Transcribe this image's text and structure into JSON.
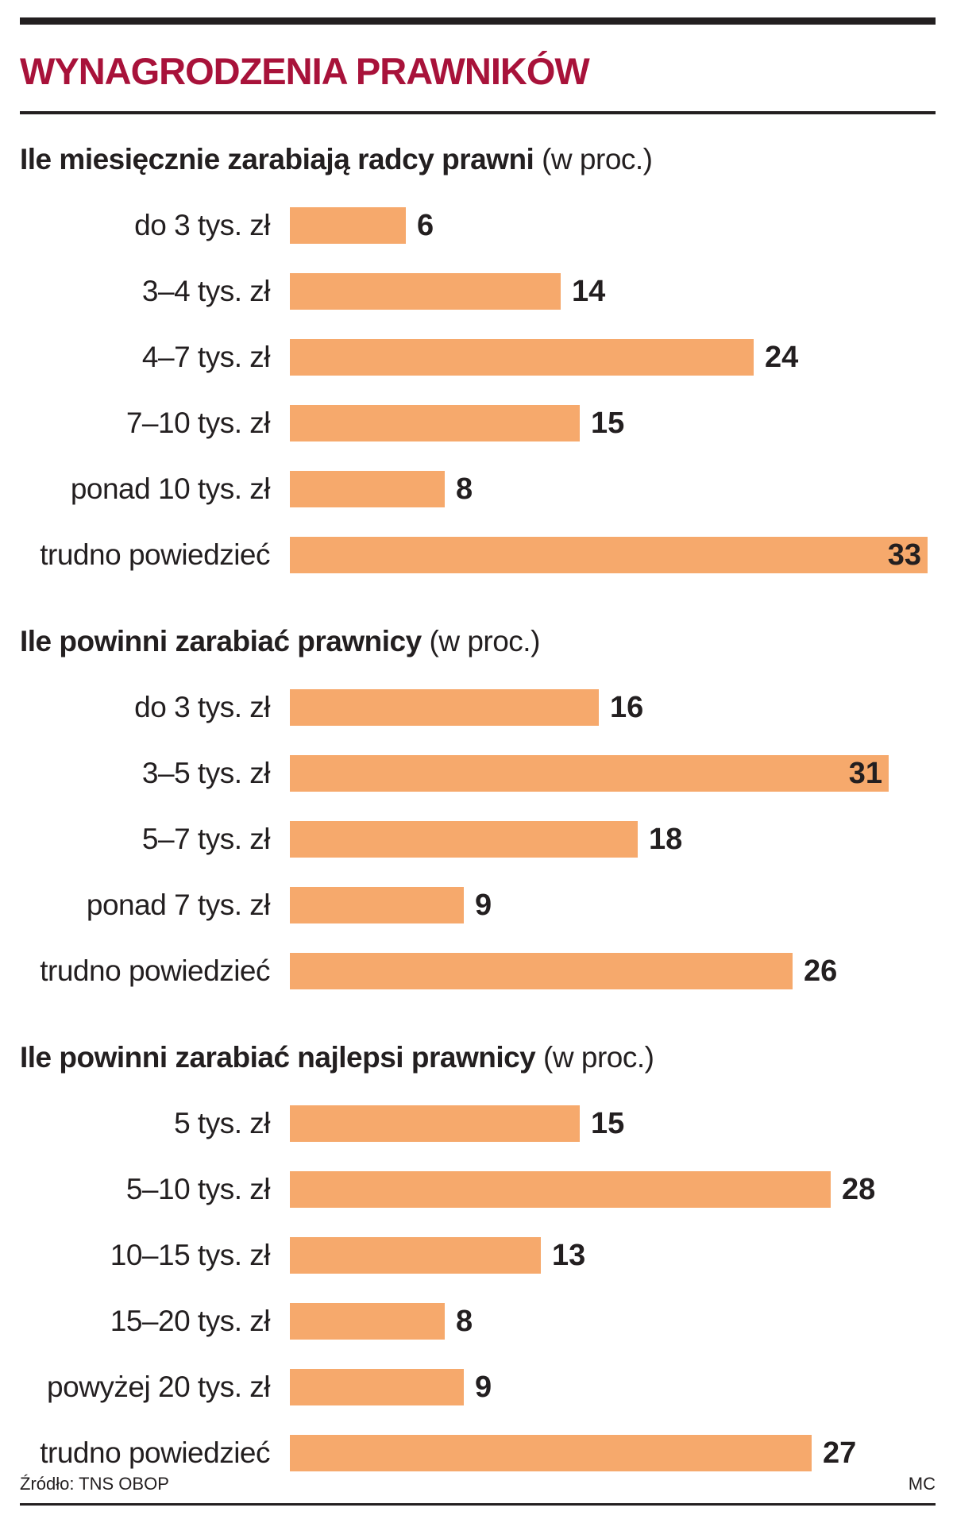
{
  "header": {
    "title": "WYNAGRODZENIA PRAWNIKÓW",
    "accent_color": "#a8123a",
    "bar_color": "#f6a96c"
  },
  "footer": {
    "source": "Źródło: TNS OBOP",
    "credit": "MC"
  },
  "chart_data": [
    {
      "type": "bar",
      "orientation": "horizontal",
      "title": "Ile miesięcznie zarabiają radcy prawni",
      "unit": "(w proc.)",
      "categories": [
        "do 3 tys. zł",
        "3–4 tys. zł",
        "4–7 tys. zł",
        "7–10 tys. zł",
        "ponad 10 tys. zł",
        "trudno powiedzieć"
      ],
      "values": [
        6,
        14,
        24,
        15,
        8,
        33
      ],
      "xlim": [
        0,
        33
      ]
    },
    {
      "type": "bar",
      "orientation": "horizontal",
      "title": "Ile powinni zarabiać prawnicy",
      "unit": "(w proc.)",
      "categories": [
        "do 3 tys. zł",
        "3–5 tys. zł",
        "5–7 tys. zł",
        "ponad 7 tys. zł",
        "trudno powiedzieć"
      ],
      "values": [
        16,
        31,
        18,
        9,
        26
      ],
      "xlim": [
        0,
        33
      ]
    },
    {
      "type": "bar",
      "orientation": "horizontal",
      "title": "Ile powinni zarabiać najlepsi prawnicy",
      "unit": "(w proc.)",
      "categories": [
        "5 tys. zł",
        "5–10 tys. zł",
        "10–15 tys. zł",
        "15–20 tys. zł",
        "powyżej 20 tys. zł",
        "trudno powiedzieć"
      ],
      "values": [
        15,
        28,
        13,
        8,
        9,
        27
      ],
      "xlim": [
        0,
        33
      ]
    }
  ]
}
